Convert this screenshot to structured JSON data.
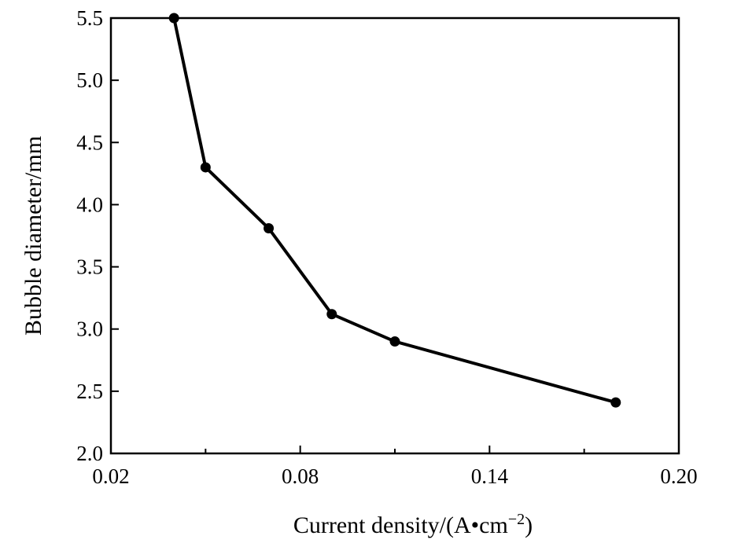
{
  "chart_data": {
    "type": "line",
    "title": "",
    "xlabel": "Current density/(A•cm⁻²)",
    "xlabel_main": "Current density/(A•cm",
    "xlabel_sup": "−2",
    "xlabel_close": ")",
    "ylabel": "Bubble diameter/mm",
    "xlim": [
      0.02,
      0.2
    ],
    "ylim": [
      2.0,
      5.5
    ],
    "xticks": [
      0.02,
      0.08,
      0.14,
      0.2
    ],
    "xtick_labels": [
      "0.02",
      "0.08",
      "0.14",
      "0.20"
    ],
    "yticks": [
      2.0,
      2.5,
      3.0,
      3.5,
      4.0,
      4.5,
      5.0,
      5.5
    ],
    "ytick_labels": [
      "2.0",
      "2.5",
      "3.0",
      "3.5",
      "4.0",
      "4.5",
      "5.0",
      "5.5"
    ],
    "grid": false,
    "series": [
      {
        "x": [
          0.04,
          0.05,
          0.07,
          0.09,
          0.11,
          0.18
        ],
        "values": [
          5.5,
          4.3,
          3.81,
          3.12,
          2.9,
          2.41
        ]
      }
    ],
    "colors": {
      "line": "#000000",
      "marker": "#000000"
    }
  }
}
